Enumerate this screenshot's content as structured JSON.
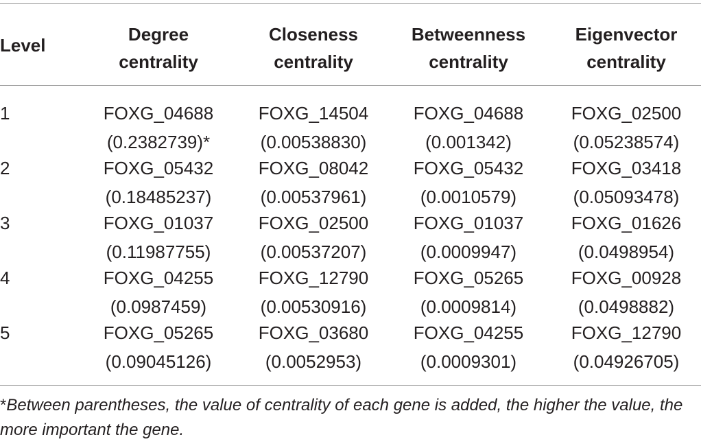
{
  "table": {
    "headers": {
      "level": "Level",
      "degree": [
        "Degree",
        "centrality"
      ],
      "closeness": [
        "Closeness",
        "centrality"
      ],
      "betweenness": [
        "Betweenness",
        "centrality"
      ],
      "eigenvector": [
        "Eigenvector",
        "centrality"
      ]
    },
    "rows": [
      {
        "level": "1",
        "degree": {
          "gene": "FOXG_04688",
          "value": "(0.2382739)*"
        },
        "closeness": {
          "gene": "FOXG_14504",
          "value": "(0.00538830)"
        },
        "betweenness": {
          "gene": "FOXG_04688",
          "value": "(0.001342)"
        },
        "eigenvector": {
          "gene": "FOXG_02500",
          "value": "(0.05238574)"
        }
      },
      {
        "level": "2",
        "degree": {
          "gene": "FOXG_05432",
          "value": "(0.18485237)"
        },
        "closeness": {
          "gene": "FOXG_08042",
          "value": "(0.00537961)"
        },
        "betweenness": {
          "gene": "FOXG_05432",
          "value": "(0.0010579)"
        },
        "eigenvector": {
          "gene": "FOXG_03418",
          "value": "(0.05093478)"
        }
      },
      {
        "level": "3",
        "degree": {
          "gene": "FOXG_01037",
          "value": "(0.11987755)"
        },
        "closeness": {
          "gene": "FOXG_02500",
          "value": "(0.00537207)"
        },
        "betweenness": {
          "gene": "FOXG_01037",
          "value": "(0.0009947)"
        },
        "eigenvector": {
          "gene": "FOXG_01626",
          "value": "(0.0498954)"
        }
      },
      {
        "level": "4",
        "degree": {
          "gene": "FOXG_04255",
          "value": "(0.0987459)"
        },
        "closeness": {
          "gene": "FOXG_12790",
          "value": "(0.00530916)"
        },
        "betweenness": {
          "gene": "FOXG_05265",
          "value": "(0.0009814)"
        },
        "eigenvector": {
          "gene": "FOXG_00928",
          "value": "(0.0498882)"
        }
      },
      {
        "level": "5",
        "degree": {
          "gene": "FOXG_05265",
          "value": "(0.09045126)"
        },
        "closeness": {
          "gene": "FOXG_03680",
          "value": "(0.0052953)"
        },
        "betweenness": {
          "gene": "FOXG_04255",
          "value": "(0.0009301)"
        },
        "eigenvector": {
          "gene": "FOXG_12790",
          "value": "(0.04926705)"
        }
      }
    ]
  },
  "footnote": {
    "mark": "*",
    "text": "Between parentheses, the value of centrality of each gene is added, the higher the value, the more important the gene."
  }
}
